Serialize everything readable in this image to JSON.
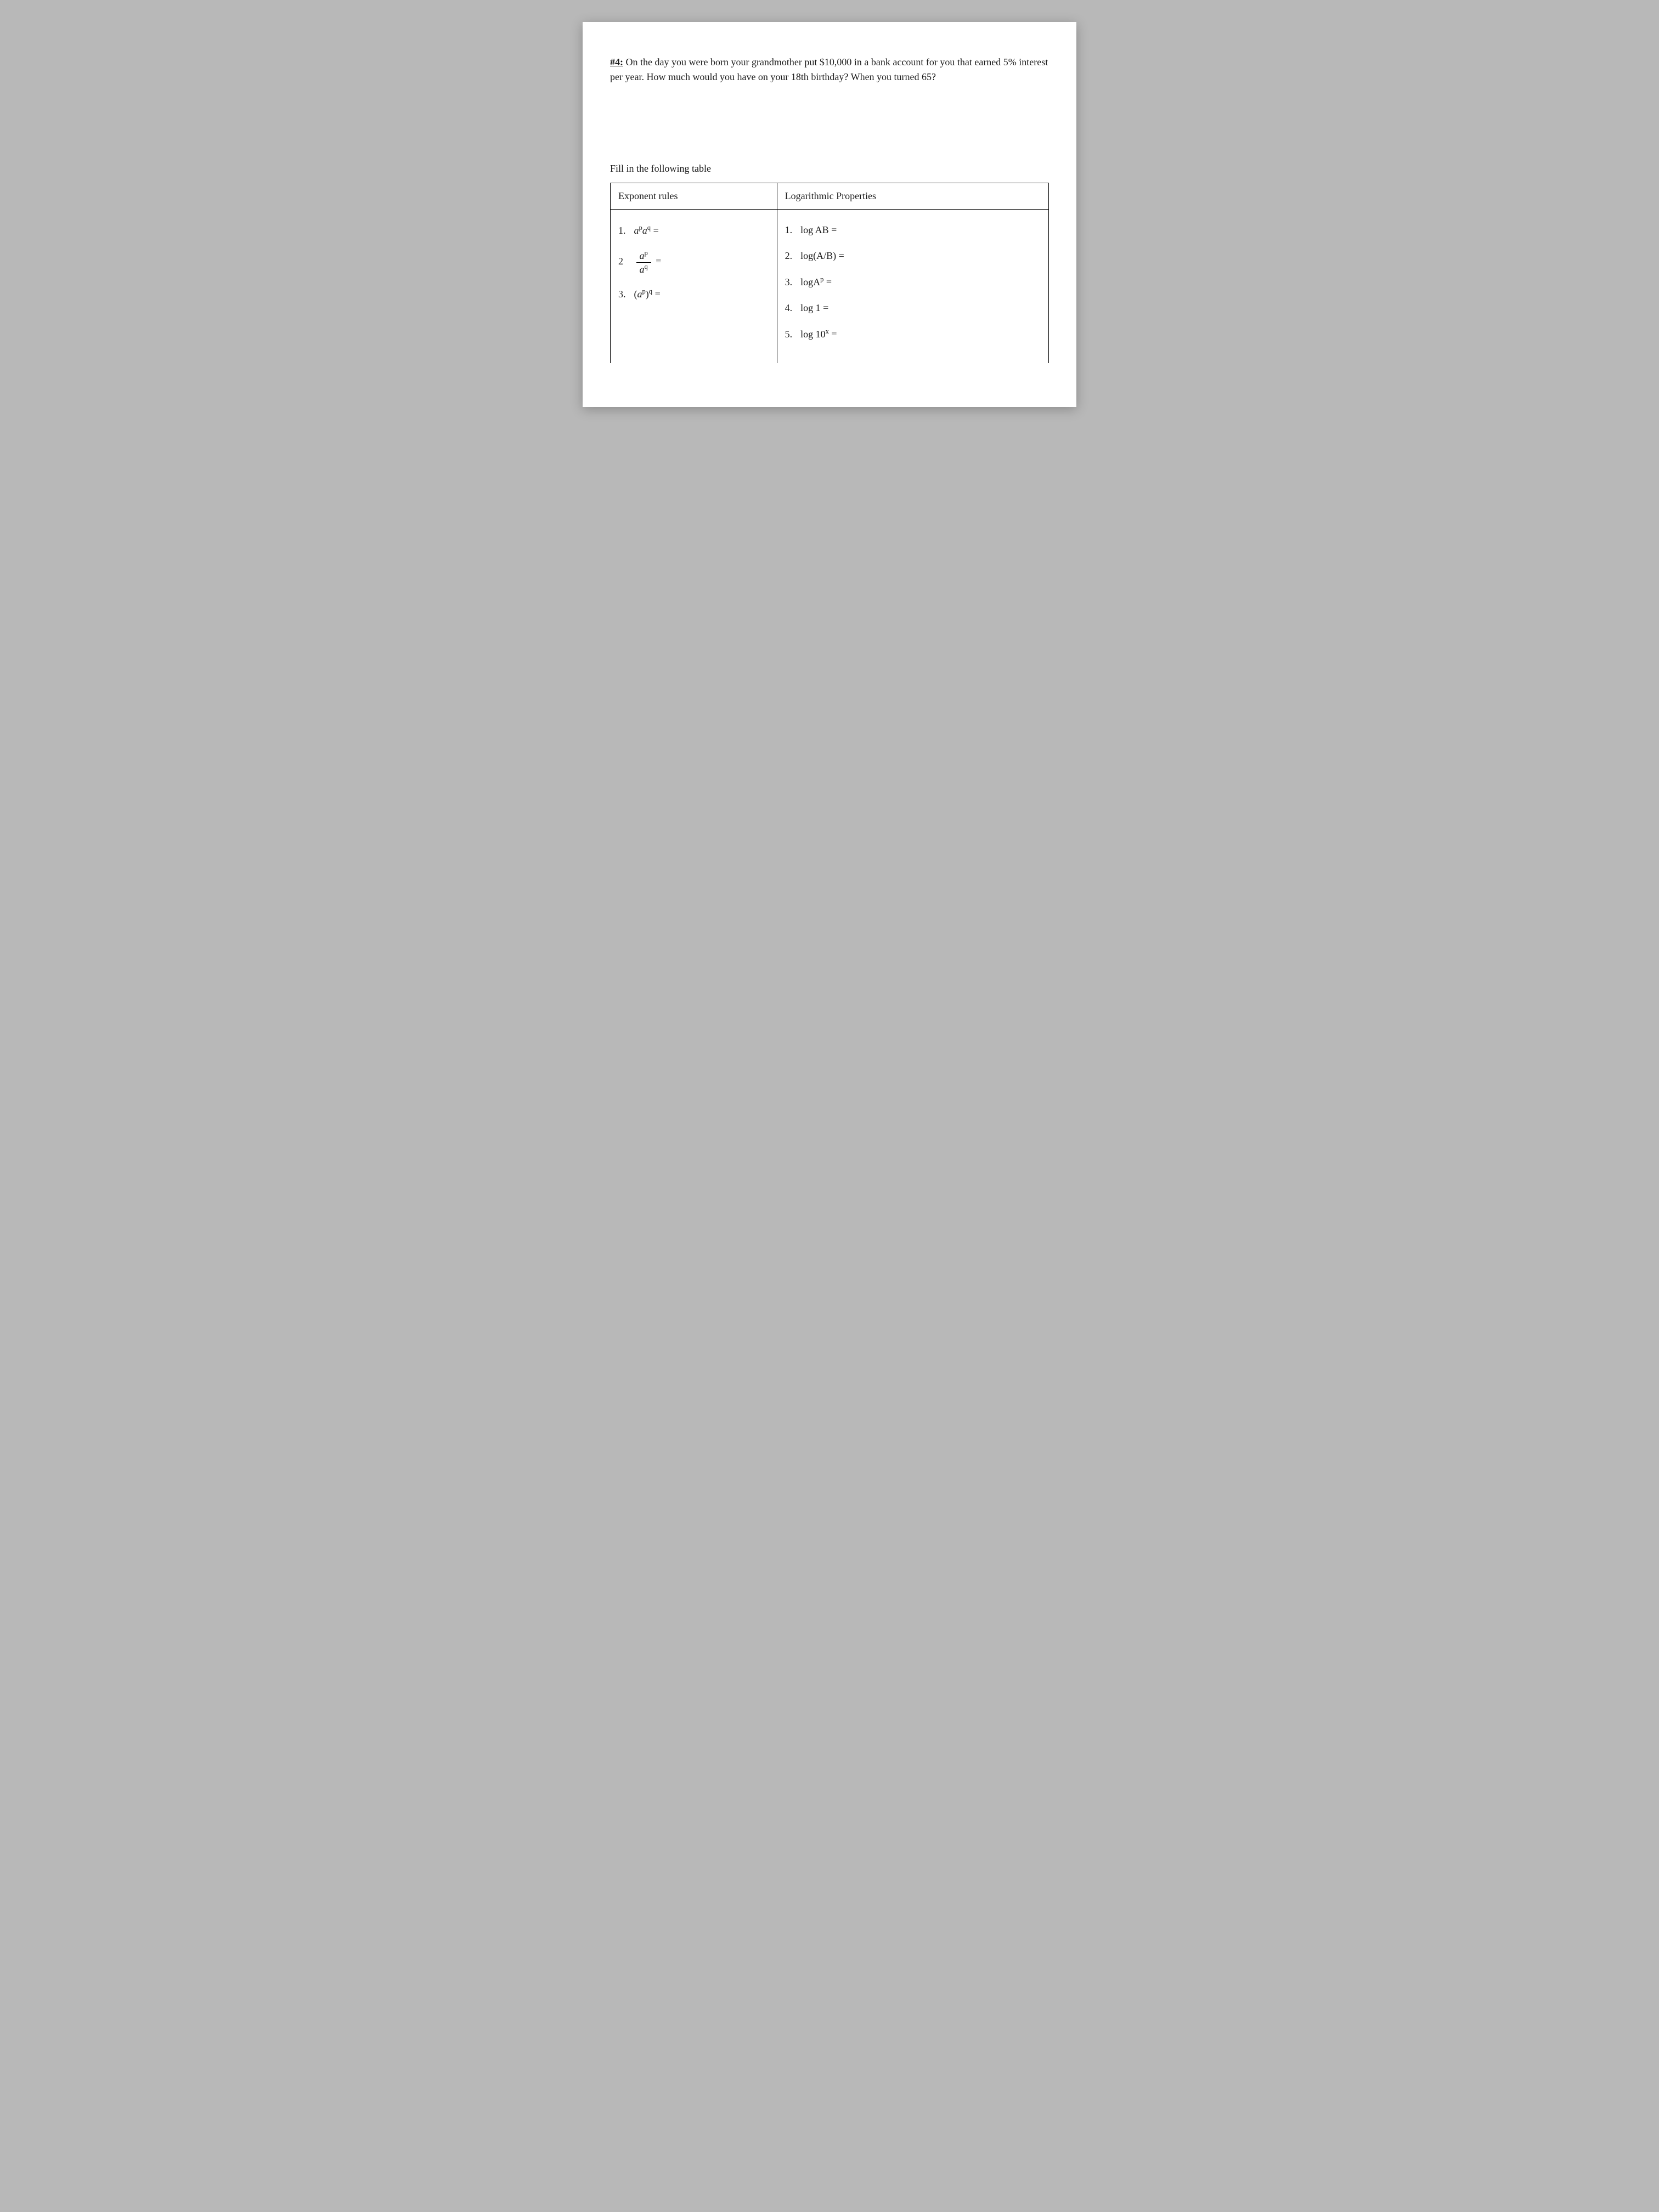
{
  "problem": {
    "label": "#4:",
    "text": " On the day you were born your grandmother put $10,000 in a bank account for you that earned 5% interest per year.  How much would you have on your 18th birthday?  When you turned 65?"
  },
  "table": {
    "title": "Fill in the following table",
    "headers": {
      "left": "Exponent rules",
      "right": "Logarithmic Properties"
    },
    "log_rules": {
      "r1": "log AB =",
      "r2": "log(A/B) =",
      "r3_pre": "logA",
      "r3_sup": "p",
      "r3_post": " =",
      "r4": "log 1 =",
      "r5_pre": "log 10",
      "r5_sup": "x",
      "r5_post": " ="
    },
    "exp_rules": {
      "r1_num": "1.",
      "r2_num": "2",
      "r3_num": "3."
    }
  }
}
